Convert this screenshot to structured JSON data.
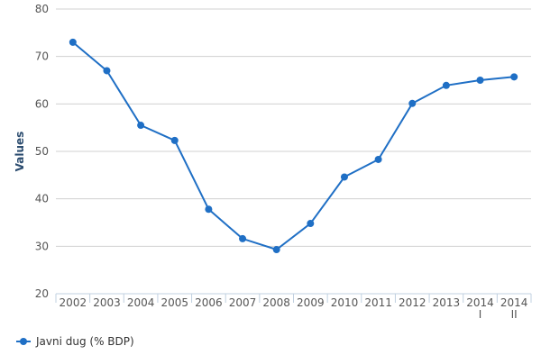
{
  "chart_data": {
    "type": "line",
    "title": "",
    "xlabel": "",
    "ylabel": "Values",
    "ylim": [
      20,
      80
    ],
    "yticks": [
      20,
      30,
      40,
      50,
      60,
      70,
      80
    ],
    "grid": true,
    "legend_position": "bottom-left",
    "categories": [
      [
        "2002"
      ],
      [
        "2003"
      ],
      [
        "2004"
      ],
      [
        "2005"
      ],
      [
        "2006"
      ],
      [
        "2007"
      ],
      [
        "2008"
      ],
      [
        "2009"
      ],
      [
        "2010"
      ],
      [
        "2011"
      ],
      [
        "2012"
      ],
      [
        "2013"
      ],
      [
        "2014",
        "I"
      ],
      [
        "2014",
        "II"
      ]
    ],
    "series": [
      {
        "name": "Javni dug (% BDP)",
        "color": "#1f6fc5",
        "values": [
          73.0,
          67.0,
          55.5,
          52.3,
          37.8,
          31.6,
          29.3,
          34.8,
          44.6,
          48.3,
          60.1,
          63.9,
          65.0,
          65.7
        ]
      }
    ]
  },
  "colors": {
    "series": "#1f6fc5",
    "axis_title": "#2b4c6f",
    "grid": "#d0d0d0",
    "axis_line": "#c0d0e0"
  }
}
